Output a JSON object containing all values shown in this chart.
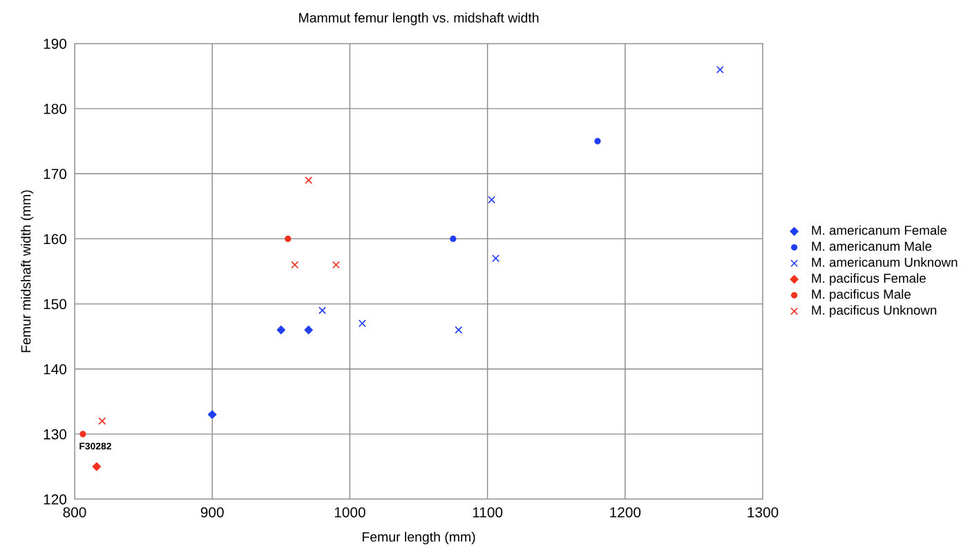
{
  "chart_data": {
    "type": "scatter",
    "title": "Mammut femur length vs. midshaft width",
    "xlabel": "Femur length (mm)",
    "ylabel": "Femur midshaft width (mm)",
    "xlim": [
      800,
      1300
    ],
    "xticks": [
      800,
      900,
      1000,
      1100,
      1200,
      1300
    ],
    "ylim": [
      120,
      190
    ],
    "yticks": [
      120,
      130,
      140,
      150,
      160,
      170,
      180,
      190
    ],
    "grid": true,
    "legend": "right",
    "series": [
      {
        "name": "M. americanum Female",
        "color": "#1f3ff0",
        "marker": "diamond",
        "x": [
          900,
          950,
          970
        ],
        "values": [
          133,
          146,
          146
        ]
      },
      {
        "name": "M. americanum Male",
        "color": "#1f3ff0",
        "marker": "circle",
        "x": [
          1075,
          1180
        ],
        "values": [
          160,
          175
        ]
      },
      {
        "name": "M. americanum Unknown",
        "color": "#1f3ff0",
        "marker": "cross",
        "x": [
          980,
          1009,
          1079,
          1103,
          1106,
          1269
        ],
        "values": [
          149,
          147,
          146,
          166,
          157,
          186
        ]
      },
      {
        "name": "M. pacificus Female",
        "color": "#f0321e",
        "marker": "diamond",
        "x": [
          816
        ],
        "values": [
          125
        ]
      },
      {
        "name": "M. pacificus Male",
        "color": "#f0321e",
        "marker": "circle",
        "x": [
          806,
          955
        ],
        "values": [
          130,
          160
        ]
      },
      {
        "name": "M. pacificus Unknown",
        "color": "#f0321e",
        "marker": "cross",
        "x": [
          820,
          960,
          970,
          990
        ],
        "values": [
          132,
          156,
          169,
          156
        ]
      }
    ],
    "annotations": [
      {
        "text": "F30282",
        "x": 806,
        "y": 130
      }
    ]
  }
}
